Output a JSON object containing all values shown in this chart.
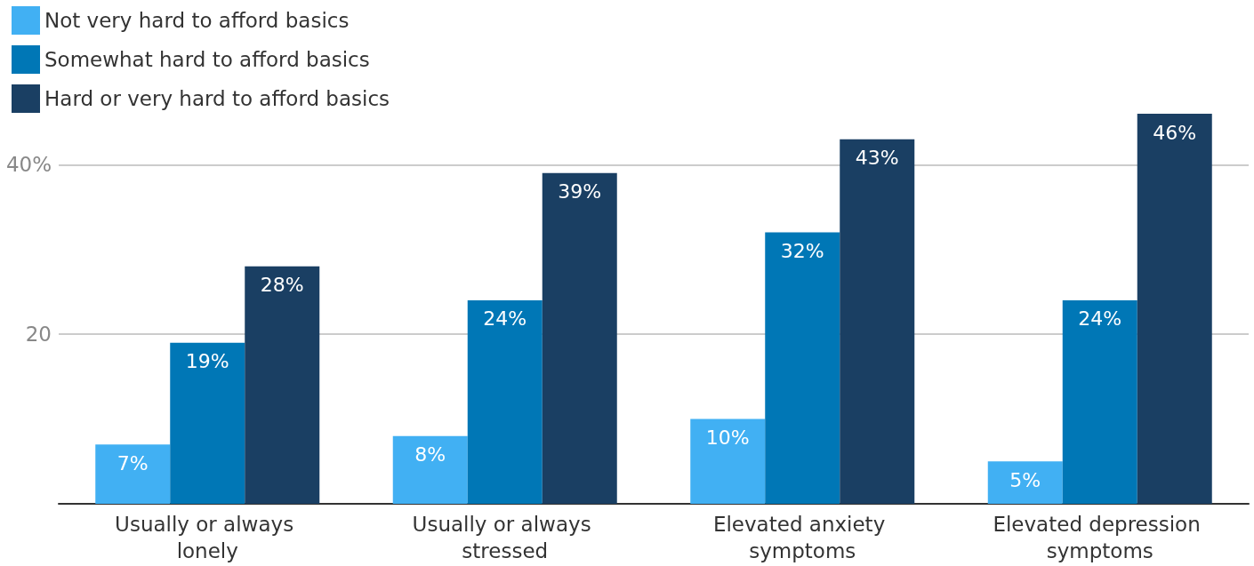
{
  "chart_data": {
    "type": "bar",
    "categories": [
      "Usually or always lonely",
      "Usually or always stressed",
      "Elevated anxiety symptoms",
      "Elevated depression symptoms"
    ],
    "series": [
      {
        "name": "Not very hard to afford basics",
        "color": "#41b0f3",
        "values": [
          7,
          8,
          10,
          5
        ]
      },
      {
        "name": "Somewhat hard to afford basics",
        "color": "#0077b6",
        "values": [
          19,
          24,
          32,
          24
        ]
      },
      {
        "name": "Hard or very hard to afford basics",
        "color": "#1a3f63",
        "values": [
          28,
          39,
          43,
          46
        ]
      }
    ],
    "ylim": [
      0,
      46
    ],
    "yticks": [
      {
        "value": 20,
        "label": "20"
      },
      {
        "value": 40,
        "label": "40%"
      }
    ],
    "grid": "y",
    "legend": "top left",
    "value_labels": [
      [
        "7%",
        "8%",
        "10%",
        "5%"
      ],
      [
        "19%",
        "24%",
        "32%",
        "24%"
      ],
      [
        "28%",
        "39%",
        "43%",
        "46%"
      ]
    ]
  }
}
